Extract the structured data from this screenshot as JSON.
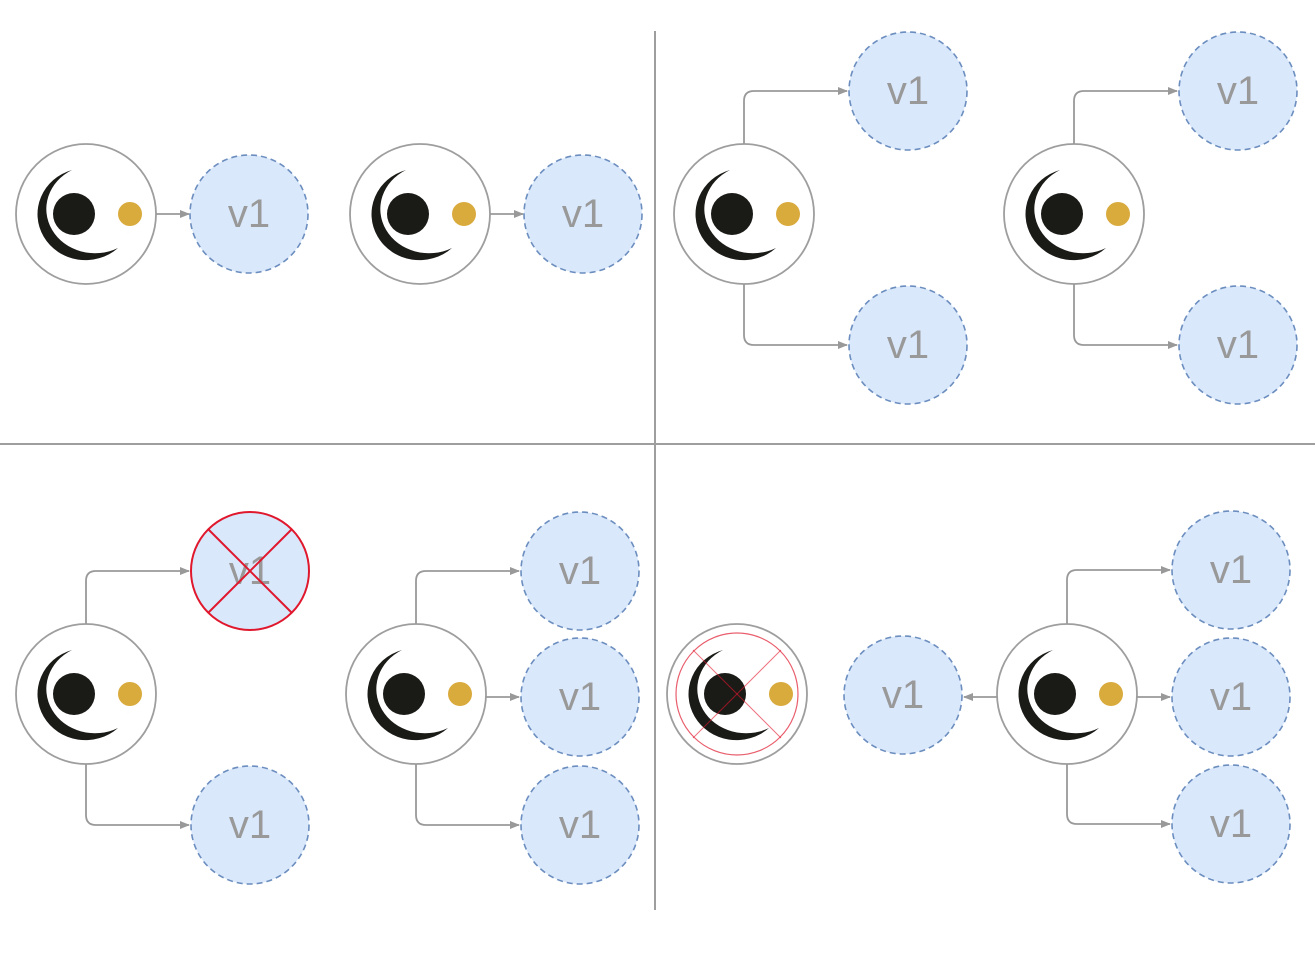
{
  "colors": {
    "pod_fill": "#dae8fc",
    "pod_stroke": "#6c8ebf",
    "pod_label": "#999999",
    "node_ring": "#9e9e9e",
    "logo_dark": "#1a1a17",
    "logo_gold": "#d9aa3c",
    "edge": "#999999",
    "removed": "#e0182d"
  },
  "icons": {
    "node": "crescent-eye-logo-icon",
    "pod": "dashed-circle",
    "removed": "red-x-cross"
  },
  "panels": [
    {
      "name": "top-left",
      "groups": [
        {
          "pods": [
            {
              "label": "v1",
              "removed": false
            }
          ]
        },
        {
          "pods": [
            {
              "label": "v1",
              "removed": false
            }
          ]
        }
      ]
    },
    {
      "name": "top-right",
      "groups": [
        {
          "pods": [
            {
              "label": "v1",
              "removed": false
            },
            {
              "label": "v1",
              "removed": false
            }
          ]
        },
        {
          "pods": [
            {
              "label": "v1",
              "removed": false
            },
            {
              "label": "v1",
              "removed": false
            }
          ]
        }
      ]
    },
    {
      "name": "bottom-left",
      "groups": [
        {
          "pods": [
            {
              "label": "v1",
              "removed": true
            },
            {
              "label": "v1",
              "removed": false
            }
          ]
        },
        {
          "pods": [
            {
              "label": "v1",
              "removed": false
            },
            {
              "label": "v1",
              "removed": false
            },
            {
              "label": "v1",
              "removed": false
            }
          ]
        }
      ]
    },
    {
      "name": "bottom-right",
      "groups": [
        {
          "node_removed": true,
          "pods": []
        },
        {
          "pods": [
            {
              "label": "v1",
              "removed": false
            },
            {
              "label": "v1",
              "removed": false
            },
            {
              "label": "v1",
              "removed": false
            },
            {
              "label": "v1",
              "removed": false
            }
          ]
        }
      ]
    }
  ]
}
